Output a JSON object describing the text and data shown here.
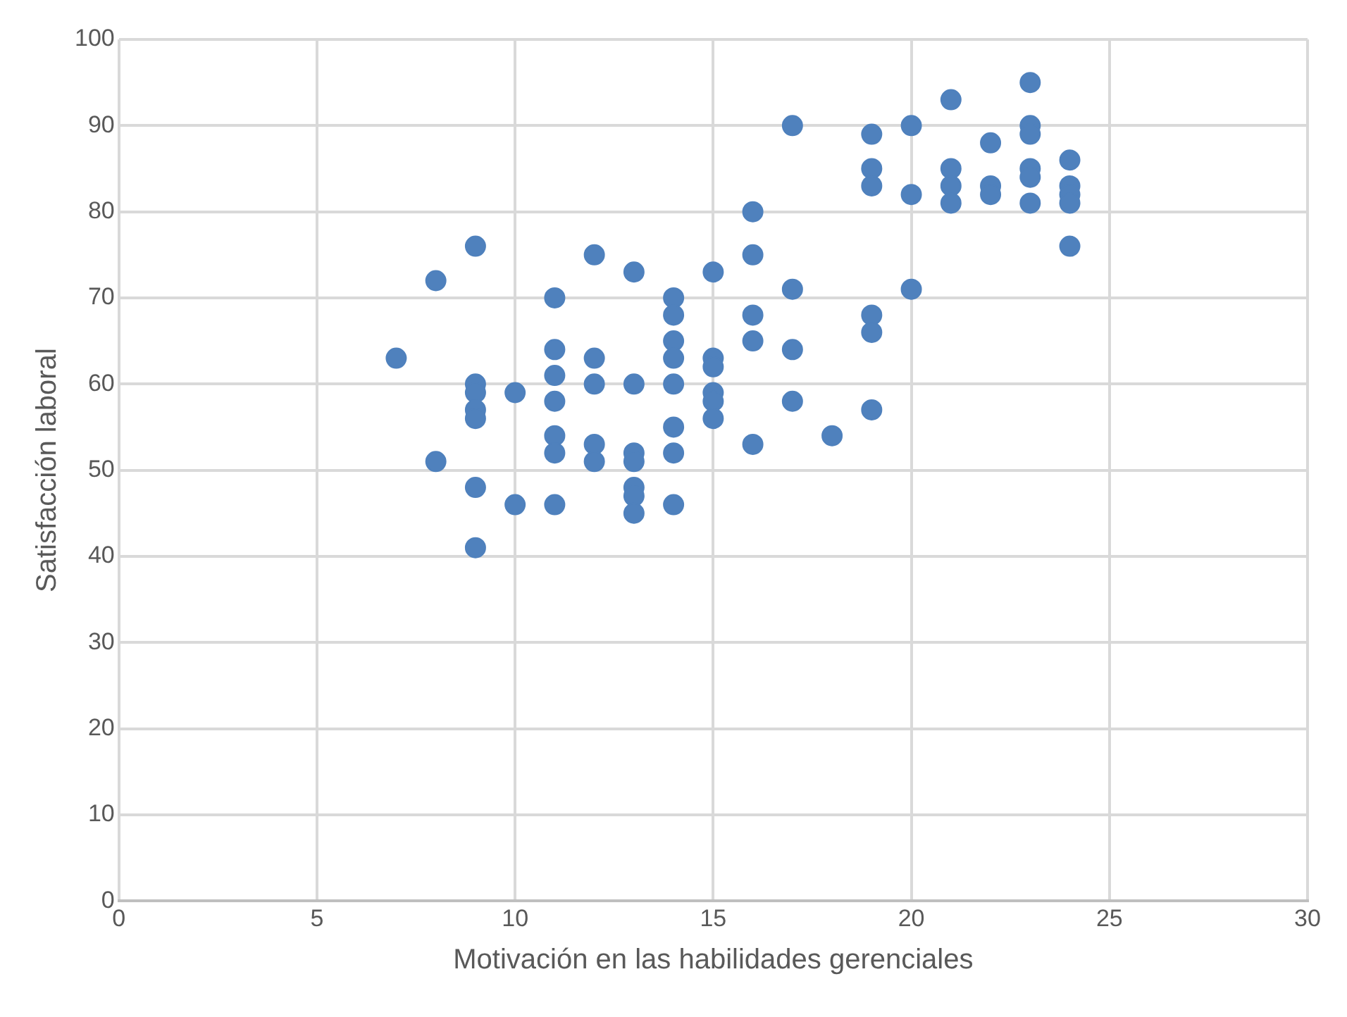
{
  "chart_data": {
    "type": "scatter",
    "xlabel": "Motivación en las habilidades gerenciales",
    "ylabel": "Satisfacción laboral",
    "x": [
      7,
      8,
      8,
      9,
      9,
      9,
      9,
      9,
      9,
      9,
      10,
      10,
      11,
      11,
      11,
      11,
      11,
      11,
      11,
      12,
      12,
      12,
      12,
      12,
      13,
      13,
      13,
      13,
      13,
      13,
      13,
      14,
      14,
      14,
      14,
      14,
      14,
      14,
      14,
      15,
      15,
      15,
      15,
      15,
      15,
      16,
      16,
      16,
      16,
      16,
      17,
      17,
      17,
      17,
      18,
      19,
      19,
      19,
      19,
      19,
      19,
      20,
      20,
      20,
      21,
      21,
      21,
      21,
      22,
      22,
      22,
      23,
      23,
      23,
      23,
      23,
      23,
      24,
      24,
      24,
      24,
      24
    ],
    "values": [
      63,
      72,
      51,
      76,
      60,
      59,
      57,
      56,
      48,
      41,
      59,
      46,
      70,
      64,
      61,
      58,
      54,
      52,
      46,
      75,
      63,
      60,
      53,
      51,
      73,
      60,
      52,
      51,
      48,
      47,
      45,
      70,
      68,
      65,
      63,
      60,
      55,
      52,
      46,
      73,
      63,
      62,
      59,
      58,
      56,
      80,
      75,
      68,
      65,
      53,
      90,
      71,
      64,
      58,
      54,
      89,
      85,
      83,
      68,
      66,
      57,
      90,
      82,
      71,
      93,
      85,
      83,
      81,
      88,
      83,
      82,
      95,
      90,
      89,
      85,
      84,
      81,
      86,
      83,
      82,
      81,
      76
    ],
    "color": "#4f81bd",
    "marker": "circle",
    "xlim": [
      0,
      30
    ],
    "xticks": [
      0,
      5,
      10,
      15,
      20,
      25,
      30
    ],
    "ylim": [
      0,
      100
    ],
    "yticks": [
      0,
      10,
      20,
      30,
      40,
      50,
      60,
      70,
      80,
      90,
      100
    ],
    "grid": true,
    "legend": false
  }
}
